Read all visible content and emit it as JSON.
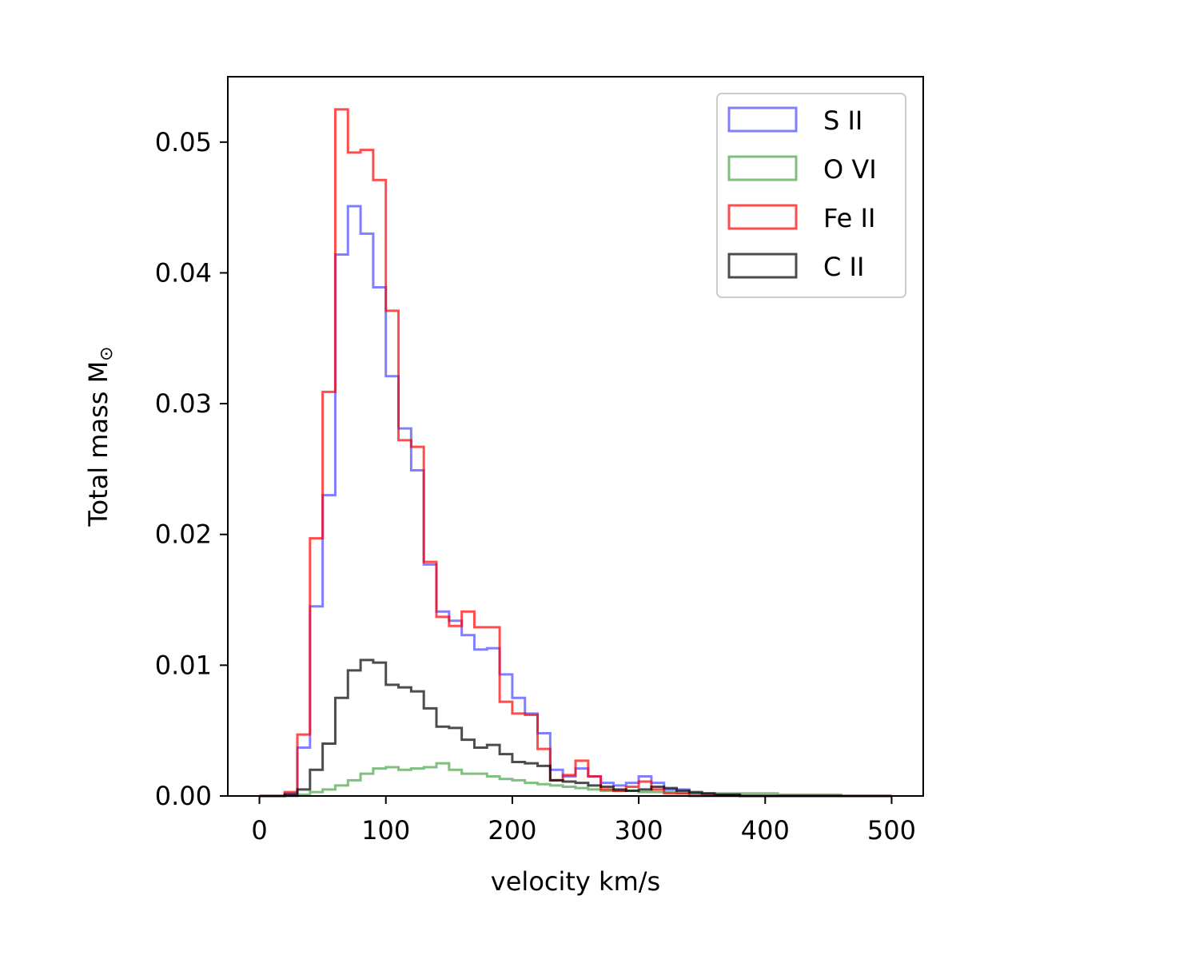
{
  "chart_data": {
    "type": "histogram-step",
    "title": "",
    "xlabel": "velocity km/s",
    "ylabel": "Total mass M",
    "ylabel_subscript": "⊙",
    "xlim": [
      -25,
      525
    ],
    "ylim": [
      0,
      0.055
    ],
    "xticks": [
      0,
      100,
      200,
      300,
      400,
      500
    ],
    "xtick_labels": [
      "0",
      "100",
      "200",
      "300",
      "400",
      "500"
    ],
    "yticks": [
      0.0,
      0.01,
      0.02,
      0.03,
      0.04,
      0.05
    ],
    "ytick_labels": [
      "0.00",
      "0.01",
      "0.02",
      "0.03",
      "0.04",
      "0.05"
    ],
    "grid": false,
    "legend_position": "upper-right",
    "bin_edges": [
      0,
      10,
      20,
      30,
      40,
      50,
      60,
      70,
      80,
      90,
      100,
      110,
      120,
      130,
      140,
      150,
      160,
      170,
      180,
      190,
      200,
      210,
      220,
      230,
      240,
      250,
      260,
      270,
      280,
      290,
      300,
      310,
      320,
      330,
      340,
      350,
      360,
      370,
      380,
      390,
      400,
      410,
      420,
      430,
      440,
      450,
      460,
      470,
      480,
      490,
      500
    ],
    "series": [
      {
        "name": "S II",
        "color": "#0000ff",
        "opacity": 0.5,
        "values": [
          0,
          0,
          0.0002,
          0.0037,
          0.0145,
          0.023,
          0.0414,
          0.0451,
          0.043,
          0.0389,
          0.0321,
          0.0281,
          0.0249,
          0.0177,
          0.0141,
          0.0134,
          0.0123,
          0.0112,
          0.0113,
          0.0093,
          0.0075,
          0.0063,
          0.0048,
          0.002,
          0.0015,
          0.0021,
          0.0015,
          0.001,
          0.0008,
          0.001,
          0.0015,
          0.001,
          0.0005,
          0.0005,
          0.0002,
          0.0001,
          0.0001,
          0.0001,
          0,
          0,
          0,
          0,
          0,
          0,
          0,
          0,
          0,
          0,
          0,
          0
        ]
      },
      {
        "name": "O VI",
        "color": "#008000",
        "opacity": 0.5,
        "values": [
          0,
          0,
          0,
          0.0001,
          0.0003,
          0.0005,
          0.0008,
          0.0012,
          0.0017,
          0.0021,
          0.0022,
          0.002,
          0.0021,
          0.0022,
          0.0025,
          0.002,
          0.0017,
          0.0017,
          0.0015,
          0.0013,
          0.0012,
          0.001,
          0.0009,
          0.0008,
          0.0007,
          0.0006,
          0.0005,
          0.0004,
          0.0004,
          0.0004,
          0.0003,
          0.0003,
          0.0003,
          0.0002,
          0.0002,
          0.0002,
          0.0002,
          0.0002,
          0.0002,
          0.0002,
          0.0002,
          0.0001,
          0.0001,
          0.0001,
          0.0001,
          0.0001,
          0,
          0,
          0,
          0
        ]
      },
      {
        "name": "Fe II",
        "color": "#ff0000",
        "opacity": 0.7,
        "values": [
          0,
          0,
          0.0003,
          0.0047,
          0.0197,
          0.0309,
          0.0525,
          0.0492,
          0.0494,
          0.0471,
          0.0371,
          0.0272,
          0.0267,
          0.0179,
          0.0137,
          0.013,
          0.0141,
          0.0129,
          0.0129,
          0.0072,
          0.0063,
          0.0062,
          0.0036,
          0.0012,
          0.0016,
          0.0027,
          0.0015,
          0.0005,
          0.0004,
          0.0007,
          0.0011,
          0.0005,
          0.0002,
          0.0002,
          0,
          0,
          0,
          0,
          0,
          0,
          0,
          0,
          0,
          0,
          0,
          0,
          0,
          0,
          0,
          0
        ]
      },
      {
        "name": "C II",
        "color": "#000000",
        "opacity": 0.7,
        "values": [
          0,
          0,
          0.0001,
          0.0005,
          0.002,
          0.004,
          0.0075,
          0.0096,
          0.0104,
          0.0102,
          0.0085,
          0.0083,
          0.008,
          0.0067,
          0.0053,
          0.0052,
          0.0043,
          0.0037,
          0.0039,
          0.0032,
          0.0026,
          0.0025,
          0.0023,
          0.0012,
          0.0011,
          0.001,
          0.0008,
          0.0007,
          0.0005,
          0.0004,
          0.0005,
          0.0007,
          0.0006,
          0.0004,
          0.0003,
          0.0002,
          0.0001,
          0.0001,
          0,
          0,
          0,
          0,
          0,
          0,
          0,
          0,
          0,
          0,
          0,
          0
        ]
      }
    ]
  }
}
